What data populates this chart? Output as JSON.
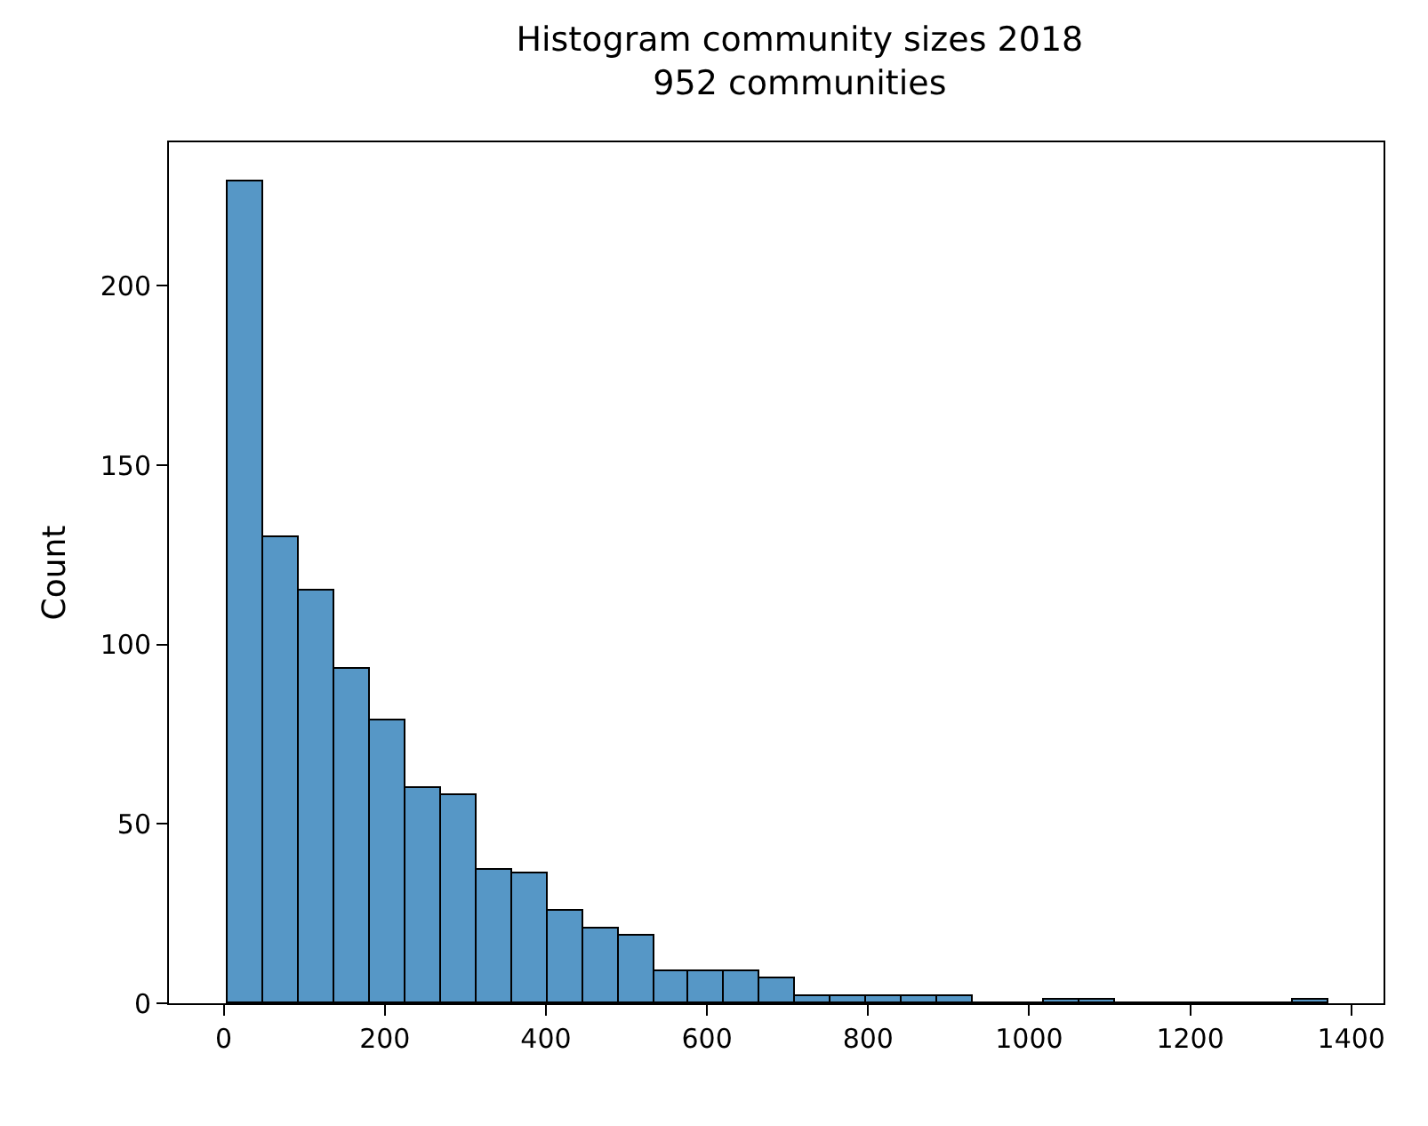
{
  "chart_data": {
    "type": "histogram",
    "title": "Histogram community sizes 2018",
    "subtitle": "952 communities",
    "ylabel": "Count",
    "bins": [
      5,
      49.1,
      93.1,
      137.2,
      181.2,
      225.3,
      269.4,
      313.4,
      357.5,
      401.5,
      445.6,
      489.7,
      533.7,
      577.8,
      621.8,
      665.9,
      710,
      754,
      798.1,
      842.1,
      886.2,
      930.3,
      974.3,
      1018.4,
      1062.4,
      1106.5,
      1150.6,
      1194.6,
      1238.7,
      1282.7,
      1326.8,
      1370.9
    ],
    "values": [
      229,
      130,
      115,
      93,
      79,
      60,
      58,
      37,
      36,
      26,
      21,
      19,
      9,
      9,
      9,
      7,
      2,
      2,
      2,
      2,
      2,
      0,
      0,
      1,
      1,
      0,
      0,
      0,
      0,
      0,
      1
    ],
    "color": "#5697c6",
    "xlim": [
      -68,
      1440
    ],
    "xticks": [
      0,
      200,
      400,
      600,
      800,
      1000,
      1200,
      1400
    ],
    "ylim": [
      0,
      240
    ],
    "yticks": [
      0,
      50,
      100,
      150,
      200
    ]
  }
}
